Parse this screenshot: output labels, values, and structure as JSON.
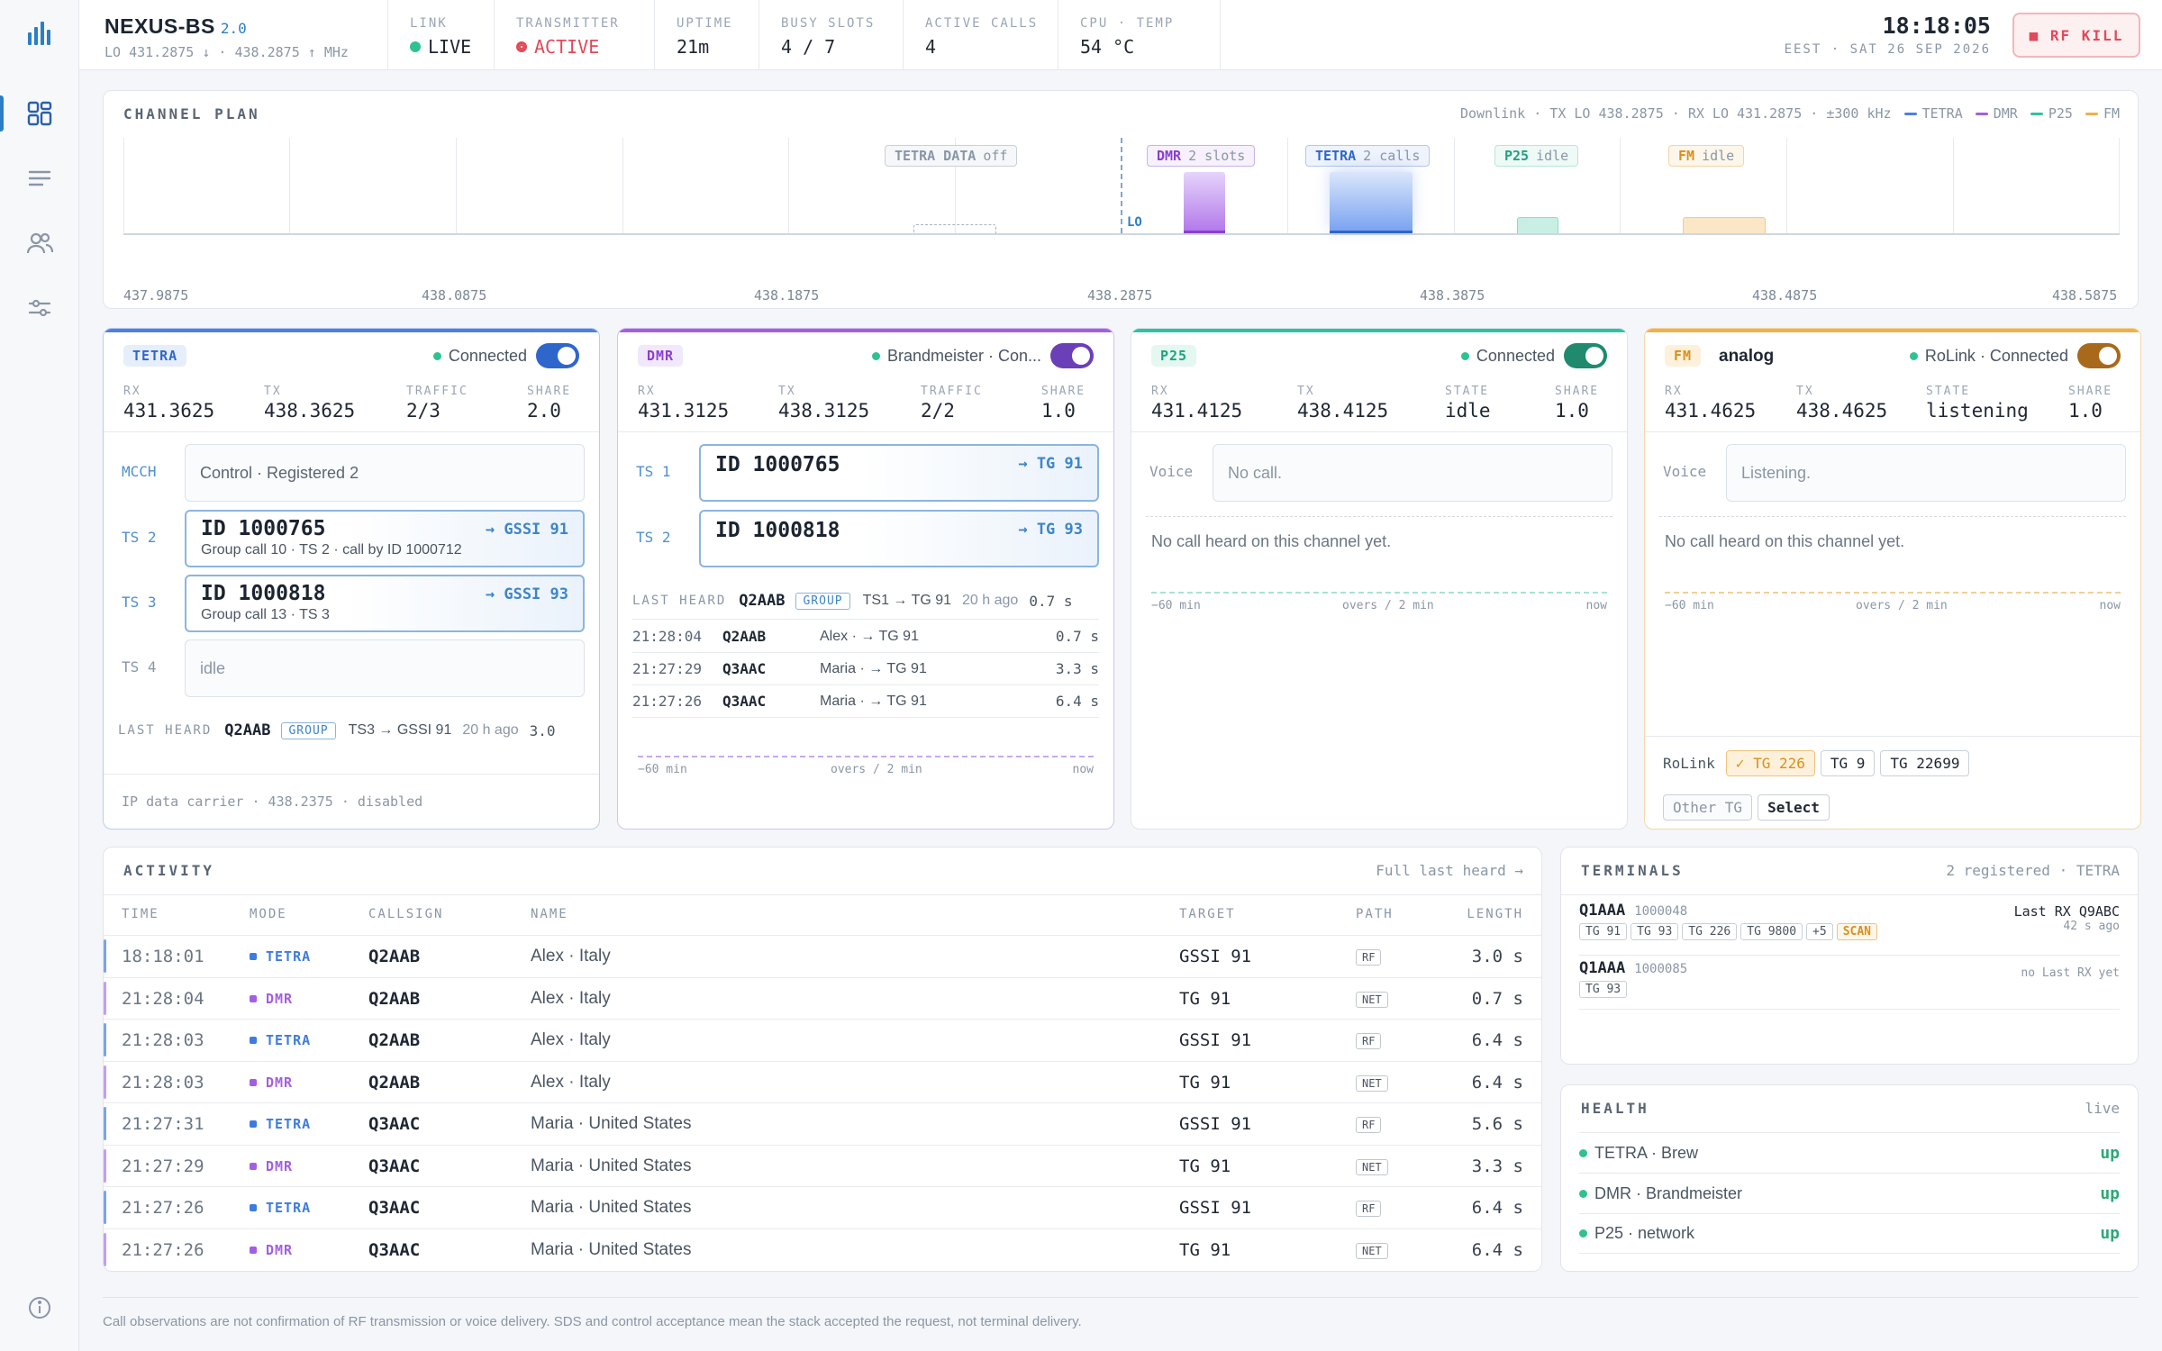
{
  "header": {
    "name": "NEXUS-BS",
    "version": "2.0",
    "lo_line": "LO 431.2875 ↓ · 438.2875 ↑ MHz",
    "stats": [
      {
        "key": "LINK",
        "value": "LIVE",
        "dot": "#2fc28e",
        "color": "#1f2733"
      },
      {
        "key": "TRANSMITTER",
        "value": "ACTIVE",
        "dot": "#e04a5a",
        "color": "#e04a5a"
      },
      {
        "key": "UPTIME",
        "value": "21m"
      },
      {
        "key": "BUSY SLOTS",
        "value": "4 / 7"
      },
      {
        "key": "ACTIVE CALLS",
        "value": "4"
      },
      {
        "key": "CPU · TEMP",
        "value": "54 °C"
      }
    ],
    "time": "18:18:05",
    "date": "EEST · SAT 26 SEP 2026",
    "kill_label": "■ RF KILL"
  },
  "sidebar": {
    "icons": [
      "bar-chart-logo-icon",
      "dashboard-icon",
      "list-icon",
      "users-icon",
      "sliders-icon",
      "info-icon"
    ]
  },
  "plan": {
    "title": "CHANNEL PLAN",
    "meta": "Downlink · TX LO 438.2875 · RX LO 431.2875 · ±300 kHz",
    "legend": [
      {
        "name": "TETRA",
        "color": "#4f7fe0"
      },
      {
        "name": "DMR",
        "color": "#a35fe0"
      },
      {
        "name": "P25",
        "color": "#2fc2a2"
      },
      {
        "name": "FM",
        "color": "#f0b04a"
      }
    ],
    "lo_label": "LO",
    "ticks": [
      "437.9875",
      "438.0875",
      "438.1875",
      "438.2875",
      "438.3875",
      "438.4875",
      "438.5875"
    ],
    "channels": [
      {
        "mode": "TETRA DATA",
        "state": "off"
      },
      {
        "mode": "DMR",
        "state": "2 slots",
        "color": "#a35fe0"
      },
      {
        "mode": "TETRA",
        "state": "2 calls",
        "color": "#4f7fe0"
      },
      {
        "mode": "P25",
        "state": "idle",
        "color": "#2fc2a2"
      },
      {
        "mode": "FM",
        "state": "idle",
        "color": "#f0b04a"
      }
    ]
  },
  "tetra": {
    "badge": "TETRA",
    "conn": "Connected",
    "kv": [
      {
        "k": "RX",
        "v": "431.3625"
      },
      {
        "k": "TX",
        "v": "438.3625"
      },
      {
        "k": "TRAFFIC",
        "v": "2/3"
      },
      {
        "k": "SHARE",
        "v": "2.0"
      }
    ],
    "mcch_label": "MCCH",
    "mcch": "Control · Registered 2",
    "ts2_label": "TS 2",
    "ts2": {
      "id": "ID 1000765",
      "to": "→ GSSI 91",
      "sub": "Group call 10 · TS 2 · call by ID 1000712"
    },
    "ts3_label": "TS 3",
    "ts3": {
      "id": "ID 1000818",
      "to": "→ GSSI 93",
      "sub": "Group call 13 · TS 3"
    },
    "ts4_label": "TS 4",
    "ts4": "idle",
    "last": {
      "k": "LAST HEARD",
      "cs": "Q2AAB",
      "grp": "GROUP",
      "rest": "TS3 → GSSI 91",
      "ago": "20 h ago",
      "dur": "3.0"
    },
    "footer": "IP data carrier · 438.2375 · disabled"
  },
  "dmr": {
    "badge": "DMR",
    "conn": "Brandmeister · Con...",
    "kv": [
      {
        "k": "RX",
        "v": "431.3125"
      },
      {
        "k": "TX",
        "v": "438.3125"
      },
      {
        "k": "TRAFFIC",
        "v": "2/2"
      },
      {
        "k": "SHARE",
        "v": "1.0"
      }
    ],
    "ts1_label": "TS 1",
    "ts1": {
      "id": "ID 1000765",
      "to": "→ TG 91"
    },
    "ts2_label": "TS 2",
    "ts2": {
      "id": "ID 1000818",
      "to": "→ TG 93"
    },
    "last": {
      "k": "LAST HEARD",
      "cs": "Q2AAB",
      "grp": "GROUP",
      "rest": "TS1 → TG 91",
      "ago": "20 h ago",
      "dur": "0.7 s"
    },
    "history": [
      {
        "time": "21:28:04",
        "cs": "Q2AAB",
        "name": "Alex · → TG 91",
        "len": "0.7 s"
      },
      {
        "time": "21:27:29",
        "cs": "Q3AAC",
        "name": "Maria · → TG 91",
        "len": "3.3 s"
      },
      {
        "time": "21:27:26",
        "cs": "Q3AAC",
        "name": "Maria · → TG 91",
        "len": "6.4 s"
      }
    ],
    "axis": {
      "left": "−60 min",
      "mid": "overs / 2 min",
      "right": "now"
    }
  },
  "p25": {
    "badge": "P25",
    "conn": "Connected",
    "kv": [
      {
        "k": "RX",
        "v": "431.4125"
      },
      {
        "k": "TX",
        "v": "438.4125"
      },
      {
        "k": "STATE",
        "v": "idle"
      },
      {
        "k": "SHARE",
        "v": "1.0"
      }
    ],
    "voice_label": "Voice",
    "voice": "No call.",
    "none": "No call heard on this channel yet.",
    "axis": {
      "left": "−60 min",
      "mid": "overs / 2 min",
      "right": "now"
    }
  },
  "fm": {
    "badge": "FM",
    "name": "analog",
    "conn": "RoLink · Connected",
    "kv": [
      {
        "k": "RX",
        "v": "431.4625"
      },
      {
        "k": "TX",
        "v": "438.4625"
      },
      {
        "k": "STATE",
        "v": "listening"
      },
      {
        "k": "SHARE",
        "v": "1.0"
      }
    ],
    "voice_label": "Voice",
    "voice": "Listening.",
    "none": "No call heard on this channel yet.",
    "axis": {
      "left": "−60 min",
      "mid": "overs / 2 min",
      "right": "now"
    },
    "rolink_label": "RoLink",
    "tgs": [
      "✓ TG 226",
      "TG 9",
      "TG 22699"
    ],
    "other": "Other TG",
    "select": "Select"
  },
  "activity": {
    "title": "ACTIVITY",
    "link": "Full last heard →",
    "headers": [
      "TIME",
      "MODE",
      "CALLSIGN",
      "NAME",
      "TARGET",
      "PATH",
      "LENGTH"
    ],
    "rows": [
      {
        "time": "18:18:01",
        "mode": "TETRA",
        "cs": "Q2AAB",
        "name": "Alex · Italy",
        "target": "GSSI 91",
        "path": "RF",
        "len": "3.0 s"
      },
      {
        "time": "21:28:04",
        "mode": "DMR",
        "cs": "Q2AAB",
        "name": "Alex · Italy",
        "target": "TG 91",
        "path": "NET",
        "len": "0.7 s"
      },
      {
        "time": "21:28:03",
        "mode": "TETRA",
        "cs": "Q2AAB",
        "name": "Alex · Italy",
        "target": "GSSI 91",
        "path": "RF",
        "len": "6.4 s"
      },
      {
        "time": "21:28:03",
        "mode": "DMR",
        "cs": "Q2AAB",
        "name": "Alex · Italy",
        "target": "TG 91",
        "path": "NET",
        "len": "6.4 s"
      },
      {
        "time": "21:27:31",
        "mode": "TETRA",
        "cs": "Q3AAC",
        "name": "Maria · United States",
        "target": "GSSI 91",
        "path": "RF",
        "len": "5.6 s"
      },
      {
        "time": "21:27:29",
        "mode": "DMR",
        "cs": "Q3AAC",
        "name": "Maria · United States",
        "target": "TG 91",
        "path": "NET",
        "len": "3.3 s"
      },
      {
        "time": "21:27:26",
        "mode": "TETRA",
        "cs": "Q3AAC",
        "name": "Maria · United States",
        "target": "GSSI 91",
        "path": "RF",
        "len": "6.4 s"
      },
      {
        "time": "21:27:26",
        "mode": "DMR",
        "cs": "Q3AAC",
        "name": "Maria · United States",
        "target": "TG 91",
        "path": "NET",
        "len": "6.4 s"
      }
    ]
  },
  "terminals": {
    "title": "TERMINALS",
    "right": "2 registered · TETRA",
    "items": [
      {
        "cs": "Q1AAA",
        "id": "1000048",
        "tgs": [
          "TG 91",
          "TG 93",
          "TG 226",
          "TG 9800",
          "+5"
        ],
        "scan": "SCAN",
        "rx": "Last RX Q9ABC",
        "rx_sub": "42 s ago"
      },
      {
        "cs": "Q1AAA",
        "id": "1000085",
        "tgs": [
          "TG 93"
        ],
        "rx": "no Last RX yet"
      }
    ]
  },
  "health": {
    "title": "HEALTH",
    "right": "live",
    "items": [
      {
        "name": "TETRA · Brew",
        "state": "up"
      },
      {
        "name": "DMR · Brandmeister",
        "state": "up"
      },
      {
        "name": "P25 · network",
        "state": "up"
      }
    ]
  },
  "footer": "Call observations are not confirmation of RF transmission or voice delivery. SDS and control acceptance mean the stack accepted the request, not terminal delivery."
}
